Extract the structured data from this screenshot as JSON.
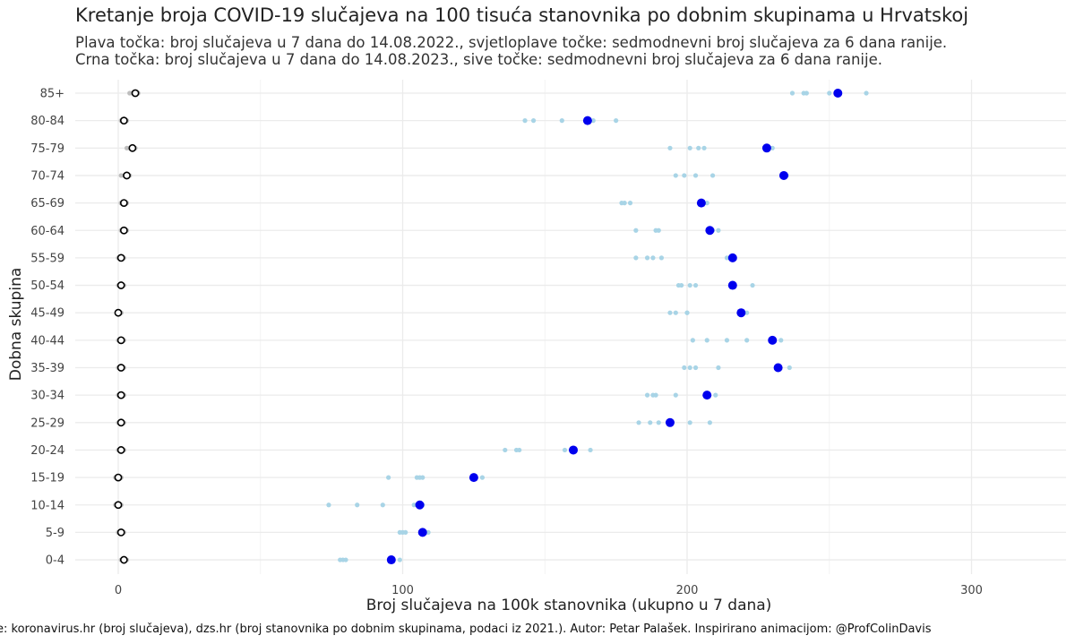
{
  "title": "Kretanje broja COVID-19 slučajeva na 100 tisuća stanovnika po dobnim skupinama u Hrvatskoj",
  "subtitle_line1": "Plava točka: broj slučajeva u 7 dana do 14.08.2022., svjetloplave točke: sedmodnevni broj slučajeva za 6 dana ranije.",
  "subtitle_line2": "Crna točka: broj slučajeva u 7 dana do 14.08.2023., sive točke: sedmodnevni broj slučajeva za 6 dana ranije.",
  "caption": "e: koronavirus.hr (broj slučajeva), dzs.hr (broj stanovnika po dobnim skupinama, podaci iz 2021.). Autor: Petar Palašek. Inspirirano animacijom: @ProfColinDavis",
  "colors": {
    "blue": "#0000ee",
    "lightblue": "#a8d4e6",
    "black": "#000000",
    "grey": "#bdbdbd",
    "grid": "#ebebeb"
  },
  "chart_data": {
    "type": "scatter",
    "xlabel": "Broj slučajeva na 100k stanovnika (ukupno u 7 dana)",
    "ylabel": "Dobna skupina",
    "xlim": [
      -15,
      335
    ],
    "xticks": [
      0,
      100,
      200,
      300
    ],
    "categories": [
      "85+",
      "80-84",
      "75-79",
      "70-74",
      "65-69",
      "60-64",
      "55-59",
      "50-54",
      "45-49",
      "40-44",
      "35-39",
      "30-34",
      "25-29",
      "20-24",
      "15-19",
      "10-14",
      "5-9",
      "0-4"
    ],
    "series": [
      {
        "values": [
          253,
          165,
          228,
          234,
          205,
          208,
          216,
          216,
          219,
          230,
          232,
          207,
          194,
          160,
          125,
          106,
          107,
          96
        ]
      },
      {
        "values": [
          [
            237,
            241,
            242,
            250,
            263
          ],
          [
            143,
            146,
            156,
            167,
            175
          ],
          [
            194,
            201,
            204,
            206,
            230
          ],
          [
            196,
            199,
            203,
            209,
            235
          ],
          [
            177,
            178,
            180,
            207,
            205
          ],
          [
            182,
            189,
            190,
            209,
            211
          ],
          [
            182,
            186,
            188,
            191,
            214
          ],
          [
            197,
            198,
            201,
            203,
            223
          ],
          [
            194,
            196,
            200,
            200,
            221
          ],
          [
            202,
            207,
            214,
            221,
            233
          ],
          [
            199,
            201,
            203,
            211,
            236
          ],
          [
            186,
            188,
            189,
            196,
            210
          ],
          [
            183,
            187,
            190,
            201,
            208
          ],
          [
            136,
            140,
            141,
            157,
            166
          ],
          [
            95,
            105,
            106,
            107,
            128
          ],
          [
            74,
            84,
            93,
            104,
            107
          ],
          [
            99,
            100,
            101,
            108,
            109
          ],
          [
            78,
            79,
            80,
            99,
            96
          ]
        ]
      },
      {
        "values": [
          6,
          2,
          5,
          3,
          2,
          2,
          1,
          1,
          0,
          1,
          1,
          1,
          1,
          1,
          0,
          0,
          1,
          2
        ]
      },
      {
        "values": [
          [
            4,
            5,
            6,
            7,
            6
          ],
          [
            1,
            2,
            2,
            2,
            3
          ],
          [
            3,
            4,
            5,
            5,
            6
          ],
          [
            1,
            2,
            2,
            3,
            4
          ],
          [
            1,
            1,
            2,
            2,
            3
          ],
          [
            1,
            2,
            2,
            2,
            3
          ],
          [
            0,
            1,
            1,
            1,
            2
          ],
          [
            0,
            1,
            1,
            1,
            2
          ],
          [
            0,
            0,
            1,
            1,
            1
          ],
          [
            0,
            1,
            1,
            1,
            2
          ],
          [
            0,
            1,
            1,
            1,
            2
          ],
          [
            0,
            1,
            1,
            2,
            2
          ],
          [
            0,
            1,
            1,
            1,
            2
          ],
          [
            0,
            1,
            1,
            2,
            2
          ],
          [
            -1,
            0,
            0,
            1,
            1
          ],
          [
            -1,
            0,
            0,
            1,
            1
          ],
          [
            0,
            0,
            1,
            1,
            2
          ],
          [
            1,
            2,
            2,
            2,
            3
          ]
        ]
      }
    ],
    "grid": true,
    "legend": "none"
  }
}
